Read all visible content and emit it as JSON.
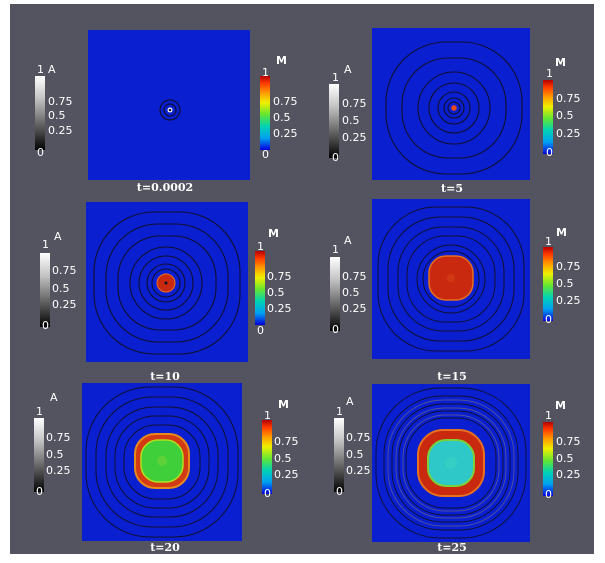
{
  "colorbar_a": {
    "title": "A",
    "ticks": [
      "1",
      "0.75",
      "0.5",
      "0.25",
      "0"
    ]
  },
  "colorbar_m": {
    "title": "M",
    "ticks": [
      "1",
      "0.75",
      "0.5",
      "0.25",
      "0"
    ]
  },
  "panels": [
    {
      "time_label": "t=0.0002"
    },
    {
      "time_label": "t=5"
    },
    {
      "time_label": "t=10"
    },
    {
      "time_label": "t=15"
    },
    {
      "time_label": "t=20"
    },
    {
      "time_label": "t=25"
    }
  ],
  "colors": {
    "background": "#535460",
    "field_blue": "#0a1fd0",
    "contour": "#101030",
    "ring_red": "#c92a0f",
    "core_green": "#3fcf3a",
    "core_cyan": "#2fc8c8"
  }
}
